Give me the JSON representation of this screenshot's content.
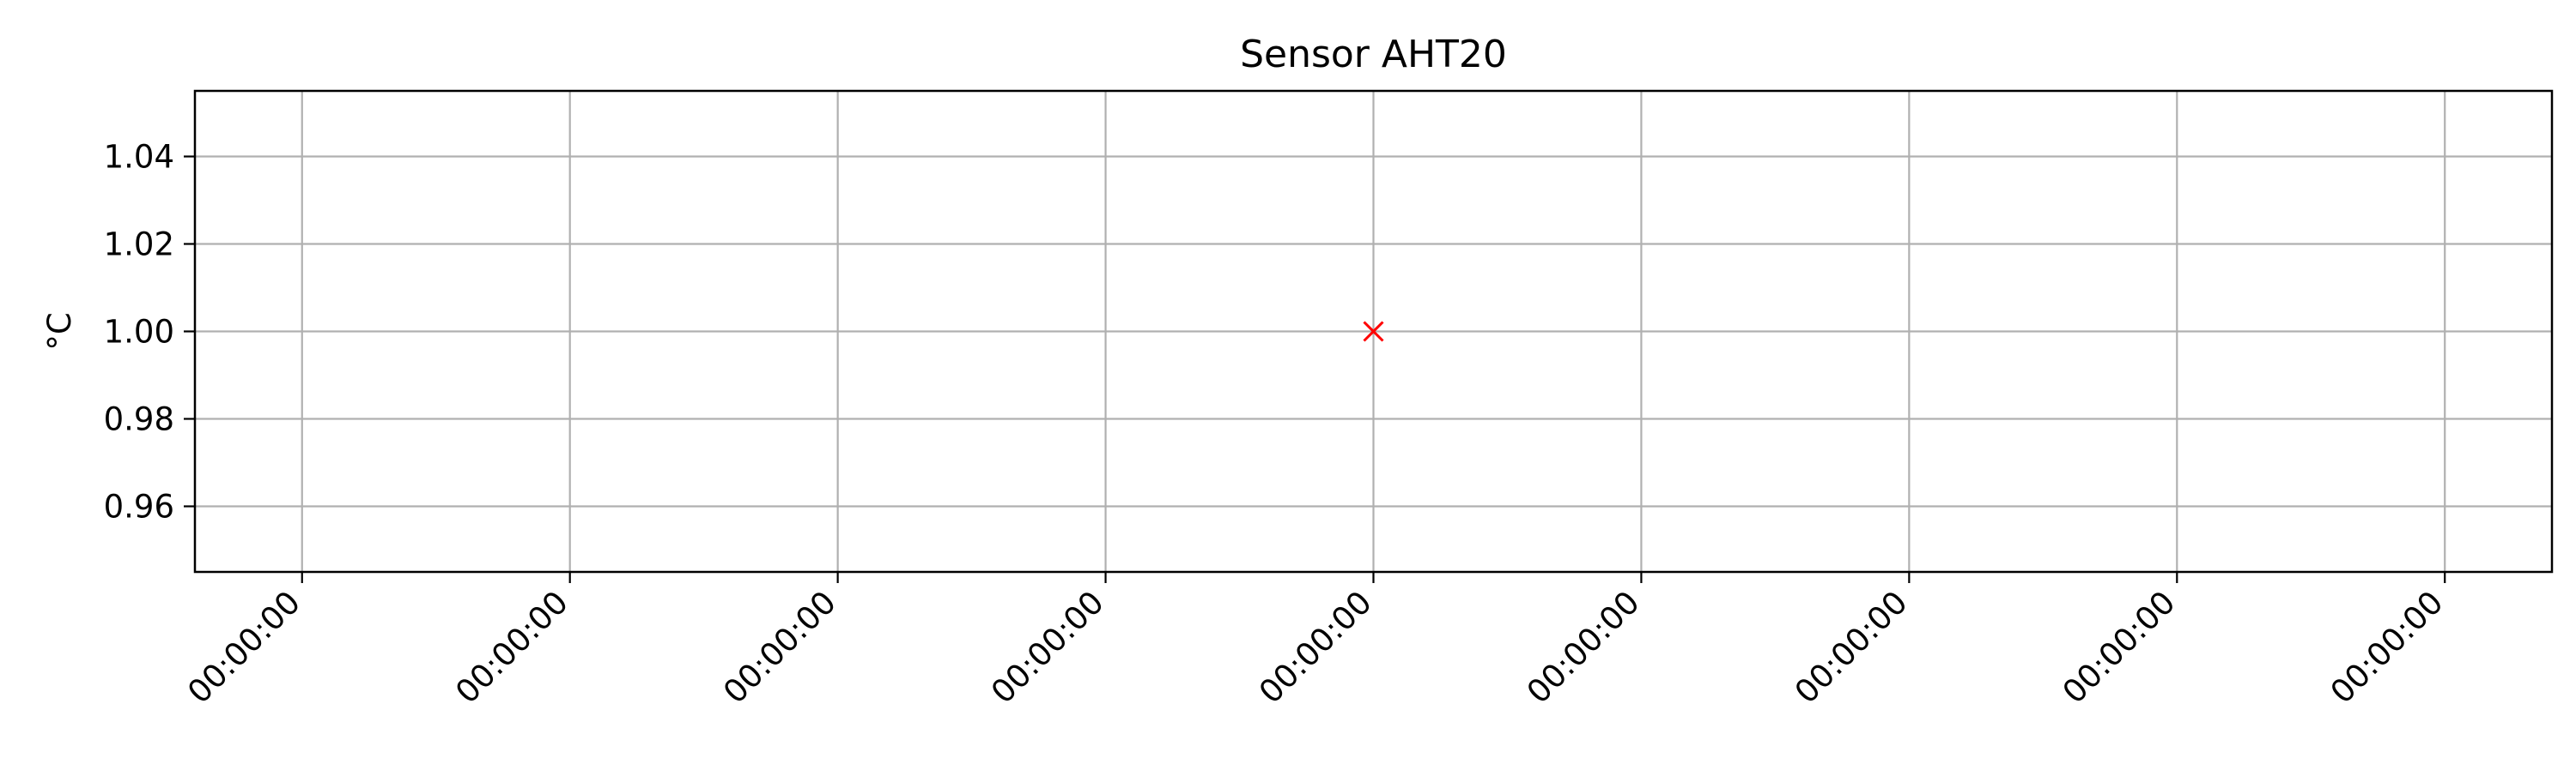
{
  "chart_data": {
    "type": "scatter",
    "title": "Sensor AHT20",
    "xlabel": "",
    "ylabel": "°C",
    "ylim": [
      0.945,
      1.055
    ],
    "xlim": [
      -0.2,
      4.2
    ],
    "y_ticks": [
      0.96,
      0.98,
      1.0,
      1.02,
      1.04
    ],
    "y_tick_labels": [
      "0.96",
      "0.98",
      "1.00",
      "1.02",
      "1.04"
    ],
    "x_ticks": [
      0,
      0.5,
      1,
      1.5,
      2,
      2.5,
      3,
      3.5,
      4
    ],
    "x_tick_labels": [
      "00:00:00",
      "00:00:00",
      "00:00:00",
      "00:00:00",
      "00:00:00",
      "00:00:00",
      "00:00:00",
      "00:00:00",
      "00:00:00"
    ],
    "series": [
      {
        "marker": "x",
        "color": "#ff0000",
        "points": [
          {
            "x": 2,
            "y": 1.0
          }
        ]
      }
    ],
    "grid": true,
    "legend": "none"
  }
}
